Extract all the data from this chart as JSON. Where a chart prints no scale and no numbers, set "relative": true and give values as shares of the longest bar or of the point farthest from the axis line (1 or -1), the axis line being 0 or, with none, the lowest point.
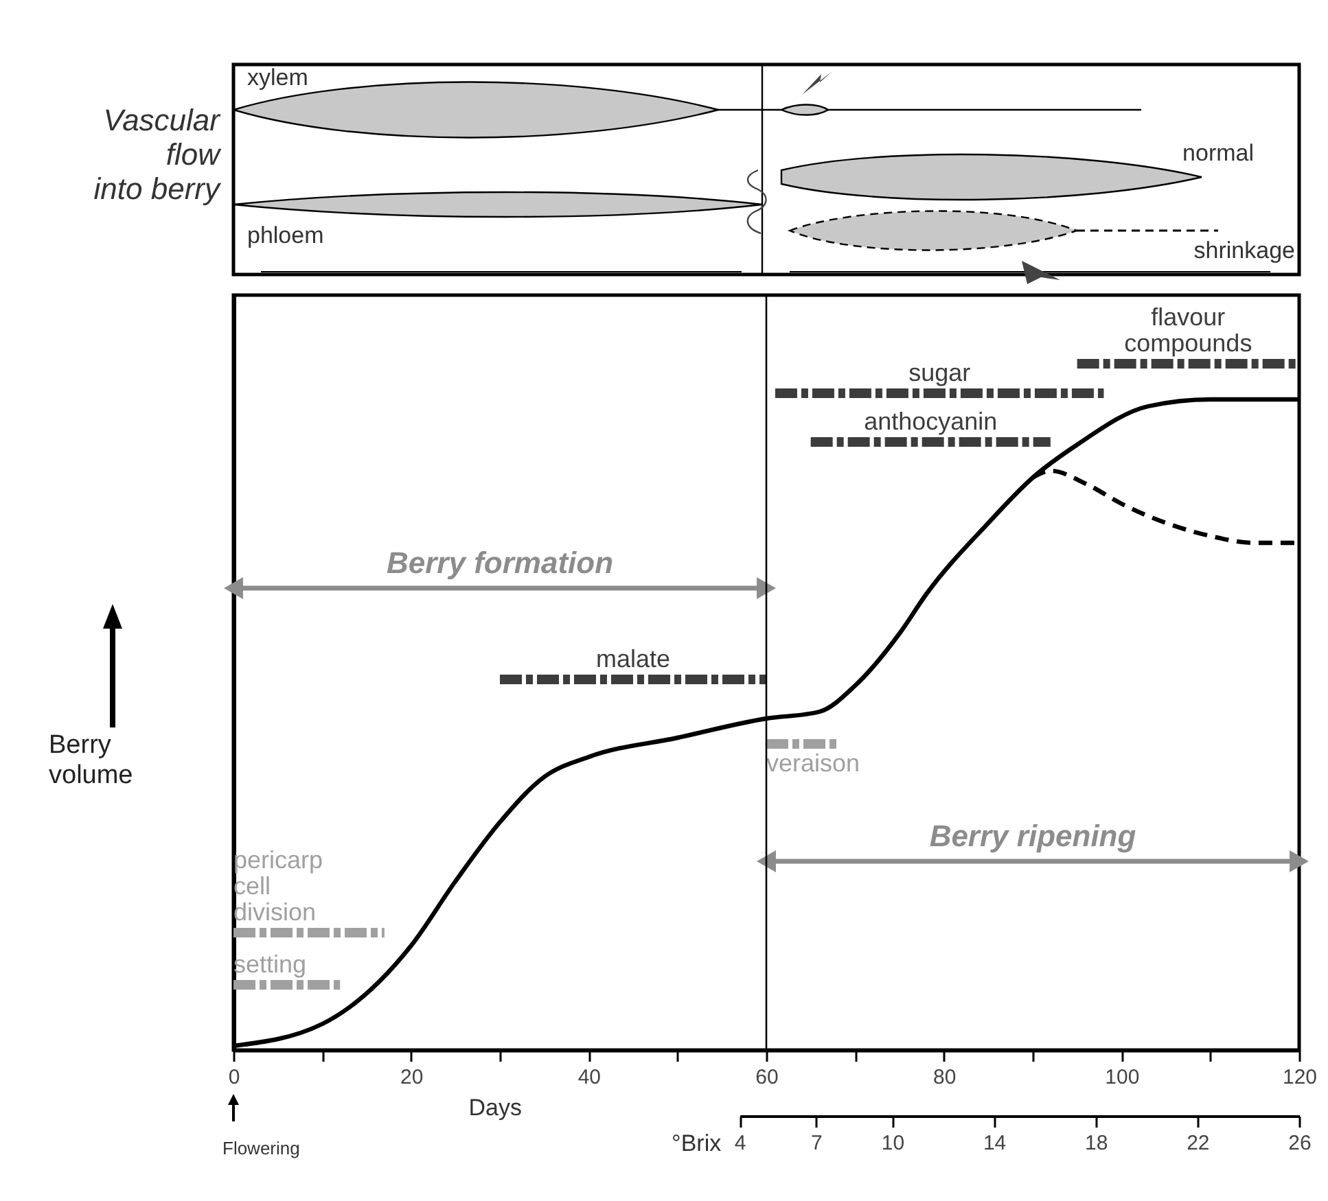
{
  "chart_data": [
    {
      "type": "other",
      "ylabel": "Vascular flow into berry",
      "annotations": [
        "xylem",
        "phloem",
        "normal",
        "shrinkage"
      ]
    },
    {
      "type": "line",
      "xlabel": "Days",
      "ylabel": "Berry volume",
      "relative": true,
      "xlim": [
        0,
        120
      ],
      "xticks": [
        0,
        {
          "value": 10,
          "label": null
        },
        20,
        {
          "value": 30,
          "label": null
        },
        40,
        {
          "value": 50,
          "label": null
        },
        60,
        {
          "value": 70,
          "label": null
        },
        80,
        {
          "value": 90,
          "label": null
        },
        100,
        {
          "value": 110,
          "label": null
        },
        120
      ],
      "x2label": "°Brix",
      "x2lim": [
        4,
        26
      ],
      "x2ticks": [
        4,
        7,
        10,
        14,
        18,
        22,
        26
      ],
      "ref_lines": [
        {
          "axis": "x",
          "value": 60
        }
      ],
      "annotations": [
        "Flowering"
      ],
      "series": [
        {
          "color": "#000000",
          "x": [
            0,
            10,
            20,
            25,
            30,
            35,
            40,
            50,
            60,
            66,
            70,
            75,
            78,
            85,
            90,
            95,
            103,
            110,
            120
          ],
          "values": [
            0.006,
            0.038,
            0.152,
            0.246,
            0.332,
            0.398,
            0.427,
            0.455,
            0.483,
            0.493,
            0.531,
            0.607,
            0.664,
            0.768,
            0.834,
            0.882,
            0.938,
            0.948,
            0.948
          ]
        },
        {
          "color": "#000000",
          "line_style": "dashed",
          "x": [
            90,
            92,
            96,
            100,
            105,
            110,
            115,
            120
          ],
          "values": [
            0.834,
            0.844,
            0.825,
            0.796,
            0.768,
            0.749,
            0.739,
            0.739
          ]
        },
        {
          "name": "pericarp cell division",
          "color": "#a0a0a0",
          "line_style": "dashed",
          "x": [
            0,
            17
          ],
          "values": [
            0.171,
            0.171
          ]
        },
        {
          "name": "setting",
          "color": "#a0a0a0",
          "line_style": "dashed",
          "x": [
            0,
            12
          ],
          "values": [
            0.095,
            0.095
          ]
        },
        {
          "name": "malate",
          "color": "#3c3c3c",
          "line_style": "dashed",
          "x": [
            30,
            60
          ],
          "values": [
            0.54,
            0.54
          ]
        },
        {
          "name": "veraison",
          "color": "#a0a0a0",
          "line_style": "dashed",
          "x": [
            60,
            68
          ],
          "values": [
            0.446,
            0.446
          ]
        },
        {
          "name": "sugar",
          "color": "#3c3c3c",
          "line_style": "dashed",
          "x": [
            61,
            98
          ],
          "values": [
            0.957,
            0.957
          ]
        },
        {
          "name": "anthocyanin",
          "color": "#3c3c3c",
          "line_style": "dashed",
          "x": [
            65,
            92
          ],
          "values": [
            0.886,
            0.886
          ]
        },
        {
          "name": "flavour compounds",
          "color": "#3c3c3c",
          "line_style": "dashed",
          "x": [
            95,
            120
          ],
          "values": [
            1,
            1
          ]
        },
        {
          "name": "Berry formation",
          "color": "#8c8c8c",
          "marker": "triangle",
          "x": [
            0,
            60
          ],
          "values": [
            0.673,
            0.673
          ]
        },
        {
          "name": "Berry ripening",
          "color": "#8c8c8c",
          "marker": "triangle",
          "x": [
            60,
            120
          ],
          "values": [
            0.275,
            0.275
          ]
        }
      ]
    }
  ]
}
